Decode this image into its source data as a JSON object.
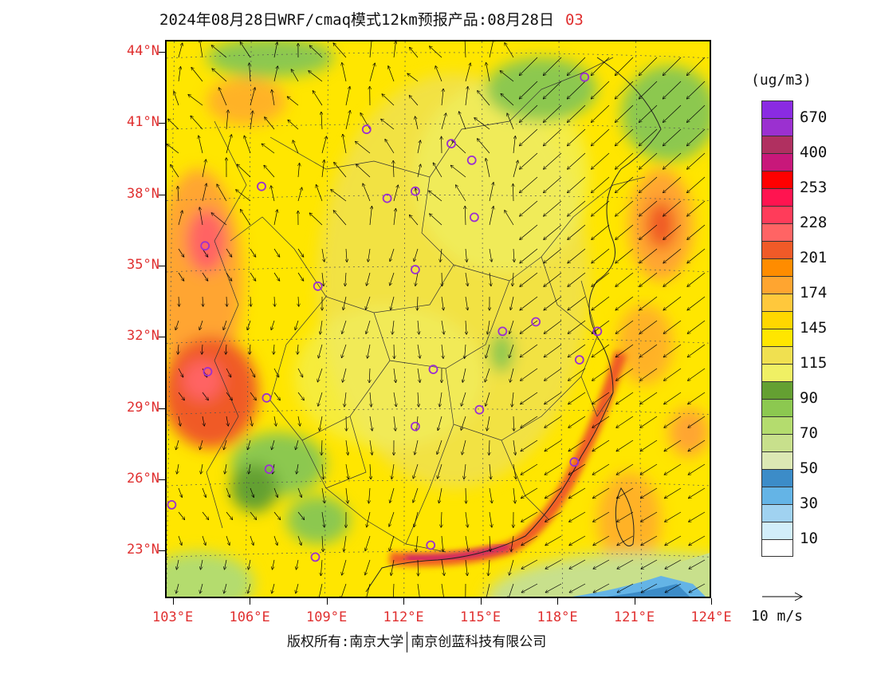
{
  "header": {
    "title": "2024年08月28日WRF/cmaq模式12km预报产品:08月28日",
    "hour": "03"
  },
  "axes": {
    "lat_labels": [
      "44°N",
      "41°N",
      "38°N",
      "35°N",
      "32°N",
      "29°N",
      "26°N",
      "23°N"
    ],
    "lon_labels": [
      "103°E",
      "106°E",
      "109°E",
      "112°E",
      "115°E",
      "118°E",
      "121°E",
      "124°E"
    ],
    "lat_range": [
      21.0,
      44.5
    ],
    "lon_range": [
      102.7,
      124.0
    ]
  },
  "legend": {
    "unit": "(ug/m3)",
    "levels": [
      {
        "color": "#8a2be2",
        "label": "670"
      },
      {
        "color": "#9b30d0",
        "label": ""
      },
      {
        "color": "#b03060",
        "label": "400"
      },
      {
        "color": "#c8187a",
        "label": ""
      },
      {
        "color": "#ff0000",
        "label": "253"
      },
      {
        "color": "#ff1450",
        "label": ""
      },
      {
        "color": "#ff3c5a",
        "label": "228"
      },
      {
        "color": "#ff6464",
        "label": ""
      },
      {
        "color": "#f05a28",
        "label": "201"
      },
      {
        "color": "#ff8c00",
        "label": ""
      },
      {
        "color": "#ffa530",
        "label": "174"
      },
      {
        "color": "#ffc83c",
        "label": ""
      },
      {
        "color": "#ffd700",
        "label": "145"
      },
      {
        "color": "#ffe600",
        "label": ""
      },
      {
        "color": "#f0e050",
        "label": "115"
      },
      {
        "color": "#f0f064",
        "label": ""
      },
      {
        "color": "#64a032",
        "label": "90"
      },
      {
        "color": "#8cc850",
        "label": ""
      },
      {
        "color": "#b4dc6e",
        "label": "70"
      },
      {
        "color": "#c8e08c",
        "label": ""
      },
      {
        "color": "#dce8b4",
        "label": "50"
      },
      {
        "color": "#3c8cc8",
        "label": ""
      },
      {
        "color": "#64b4e6",
        "label": "30"
      },
      {
        "color": "#a0d2f0",
        "label": ""
      },
      {
        "color": "#d2eefa",
        "label": "10"
      },
      {
        "color": "#ffffff",
        "label": ""
      }
    ]
  },
  "wind_reference": {
    "label": "10 m/s",
    "speed": 10
  },
  "footer": {
    "left": "版权所有:南京大学",
    "right": "南京创蓝科技有限公司"
  },
  "stations": [
    {
      "lon": 119.0,
      "lat": 43.0
    },
    {
      "lon": 110.5,
      "lat": 40.8
    },
    {
      "lon": 113.8,
      "lat": 40.2
    },
    {
      "lon": 114.6,
      "lat": 39.5
    },
    {
      "lon": 111.3,
      "lat": 37.9
    },
    {
      "lon": 112.4,
      "lat": 38.2
    },
    {
      "lon": 106.4,
      "lat": 38.4
    },
    {
      "lon": 114.7,
      "lat": 37.1
    },
    {
      "lon": 104.2,
      "lat": 35.9
    },
    {
      "lon": 112.4,
      "lat": 34.9
    },
    {
      "lon": 108.6,
      "lat": 34.2
    },
    {
      "lon": 117.1,
      "lat": 32.7
    },
    {
      "lon": 115.8,
      "lat": 32.3
    },
    {
      "lon": 119.5,
      "lat": 32.3
    },
    {
      "lon": 118.8,
      "lat": 31.1
    },
    {
      "lon": 113.1,
      "lat": 30.7
    },
    {
      "lon": 104.3,
      "lat": 30.6
    },
    {
      "lon": 106.6,
      "lat": 29.5
    },
    {
      "lon": 114.9,
      "lat": 29.0
    },
    {
      "lon": 112.4,
      "lat": 28.3
    },
    {
      "lon": 118.6,
      "lat": 26.8
    },
    {
      "lon": 106.7,
      "lat": 26.5
    },
    {
      "lon": 102.9,
      "lat": 25.0
    },
    {
      "lon": 113.0,
      "lat": 23.3
    },
    {
      "lon": 108.5,
      "lat": 22.8
    }
  ]
}
